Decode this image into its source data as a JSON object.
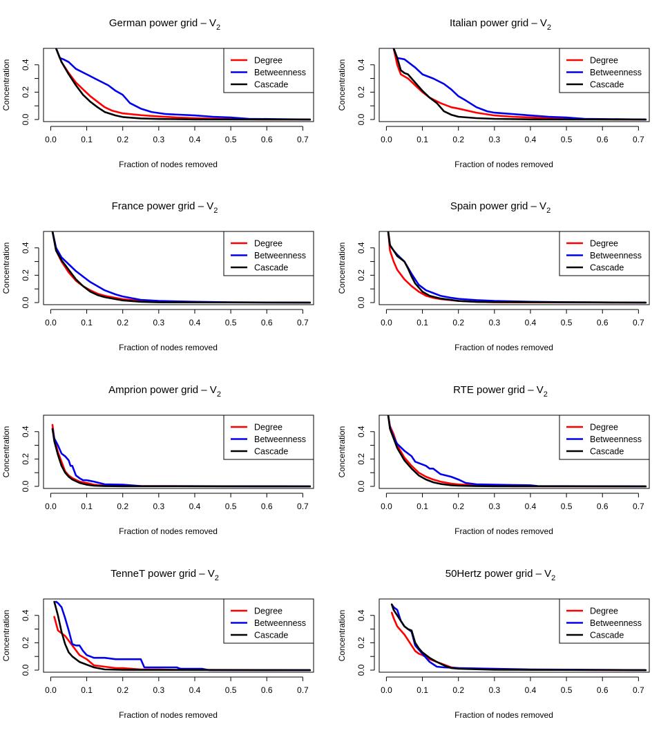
{
  "figure": {
    "xlabel": "Fraction of nodes removed",
    "ylabel": "Concentration",
    "xticks": [
      "0.0",
      "0.1",
      "0.2",
      "0.3",
      "0.4",
      "0.5",
      "0.6",
      "0.7"
    ],
    "yticks": [
      "0.0",
      "0.2",
      "0.4"
    ],
    "legend_labels": [
      "Degree",
      "Betweenness",
      "Cascade"
    ],
    "colors": {
      "Degree": "#ff0000",
      "Betweenness": "#0000ee",
      "Cascade": "#000000"
    }
  },
  "chart_data": [
    {
      "type": "line",
      "title": "German power grid – V",
      "title_subscript": "2",
      "xlabel": "Fraction of nodes removed",
      "ylabel": "Concentration",
      "xlim": [
        -0.02,
        0.73
      ],
      "ylim": [
        0,
        0.52
      ],
      "legend_position": "top-right",
      "series": [
        {
          "name": "Degree",
          "x": [
            0.015,
            0.03,
            0.05,
            0.07,
            0.09,
            0.11,
            0.13,
            0.15,
            0.17,
            0.2,
            0.25,
            0.3,
            0.35,
            0.4,
            0.45,
            0.5,
            0.55,
            0.72
          ],
          "y": [
            0.52,
            0.42,
            0.34,
            0.27,
            0.22,
            0.17,
            0.13,
            0.09,
            0.065,
            0.045,
            0.032,
            0.022,
            0.015,
            0.01,
            0.006,
            0.003,
            0.0015,
            0
          ]
        },
        {
          "name": "Betweenness",
          "x": [
            0.015,
            0.025,
            0.035,
            0.05,
            0.07,
            0.1,
            0.13,
            0.16,
            0.18,
            0.2,
            0.22,
            0.25,
            0.28,
            0.32,
            0.4,
            0.45,
            0.5,
            0.55,
            0.72
          ],
          "y": [
            0.52,
            0.45,
            0.44,
            0.42,
            0.37,
            0.33,
            0.29,
            0.25,
            0.21,
            0.18,
            0.12,
            0.08,
            0.055,
            0.04,
            0.03,
            0.02,
            0.015,
            0.005,
            0
          ]
        },
        {
          "name": "Cascade",
          "x": [
            0.015,
            0.03,
            0.05,
            0.07,
            0.09,
            0.11,
            0.13,
            0.15,
            0.18,
            0.2,
            0.25,
            0.3,
            0.4,
            0.72
          ],
          "y": [
            0.52,
            0.42,
            0.33,
            0.25,
            0.18,
            0.13,
            0.09,
            0.055,
            0.03,
            0.018,
            0.008,
            0.004,
            0.001,
            0
          ]
        }
      ]
    },
    {
      "type": "line",
      "title": "Italian power grid – V",
      "title_subscript": "2",
      "xlabel": "Fraction of nodes removed",
      "ylabel": "Concentration",
      "xlim": [
        -0.02,
        0.73
      ],
      "ylim": [
        0,
        0.52
      ],
      "legend_position": "top-right",
      "series": [
        {
          "name": "Degree",
          "x": [
            0.02,
            0.03,
            0.04,
            0.06,
            0.08,
            0.1,
            0.12,
            0.15,
            0.18,
            0.2,
            0.25,
            0.3,
            0.35,
            0.4,
            0.45,
            0.5,
            0.55,
            0.72
          ],
          "y": [
            0.52,
            0.4,
            0.33,
            0.3,
            0.25,
            0.2,
            0.16,
            0.12,
            0.09,
            0.08,
            0.05,
            0.03,
            0.02,
            0.015,
            0.01,
            0.005,
            0.002,
            0
          ]
        },
        {
          "name": "Betweenness",
          "x": [
            0.02,
            0.03,
            0.05,
            0.08,
            0.1,
            0.13,
            0.16,
            0.18,
            0.2,
            0.22,
            0.25,
            0.28,
            0.3,
            0.35,
            0.4,
            0.45,
            0.5,
            0.55,
            0.72
          ],
          "y": [
            0.52,
            0.45,
            0.44,
            0.38,
            0.33,
            0.3,
            0.26,
            0.22,
            0.17,
            0.14,
            0.09,
            0.06,
            0.05,
            0.04,
            0.03,
            0.02,
            0.015,
            0.005,
            0
          ]
        },
        {
          "name": "Cascade",
          "x": [
            0.02,
            0.03,
            0.04,
            0.05,
            0.06,
            0.08,
            0.1,
            0.12,
            0.14,
            0.16,
            0.18,
            0.2,
            0.25,
            0.3,
            0.4,
            0.72
          ],
          "y": [
            0.52,
            0.45,
            0.36,
            0.34,
            0.33,
            0.27,
            0.21,
            0.16,
            0.12,
            0.06,
            0.035,
            0.02,
            0.01,
            0.005,
            0.001,
            0
          ]
        }
      ]
    },
    {
      "type": "line",
      "title": "France power grid – V",
      "title_subscript": "2",
      "xlabel": "Fraction of nodes removed",
      "ylabel": "Concentration",
      "xlim": [
        -0.02,
        0.73
      ],
      "ylim": [
        0,
        0.52
      ],
      "legend_position": "top-right",
      "series": [
        {
          "name": "Degree",
          "x": [
            0.005,
            0.015,
            0.03,
            0.05,
            0.07,
            0.09,
            0.11,
            0.13,
            0.15,
            0.18,
            0.2,
            0.25,
            0.3,
            0.4,
            0.72
          ],
          "y": [
            0.52,
            0.38,
            0.3,
            0.22,
            0.16,
            0.12,
            0.09,
            0.065,
            0.05,
            0.035,
            0.025,
            0.012,
            0.006,
            0.002,
            0
          ]
        },
        {
          "name": "Betweenness",
          "x": [
            0.005,
            0.015,
            0.03,
            0.05,
            0.07,
            0.09,
            0.11,
            0.13,
            0.15,
            0.18,
            0.2,
            0.25,
            0.3,
            0.4,
            0.5,
            0.72
          ],
          "y": [
            0.52,
            0.4,
            0.33,
            0.28,
            0.23,
            0.19,
            0.15,
            0.12,
            0.09,
            0.06,
            0.045,
            0.02,
            0.012,
            0.006,
            0.002,
            0
          ]
        },
        {
          "name": "Cascade",
          "x": [
            0.005,
            0.015,
            0.03,
            0.05,
            0.07,
            0.09,
            0.11,
            0.13,
            0.15,
            0.18,
            0.2,
            0.25,
            0.3,
            0.72
          ],
          "y": [
            0.52,
            0.38,
            0.31,
            0.24,
            0.17,
            0.12,
            0.08,
            0.055,
            0.04,
            0.025,
            0.016,
            0.006,
            0.002,
            0
          ]
        }
      ]
    },
    {
      "type": "line",
      "title": "Spain power grid – V",
      "title_subscript": "2",
      "xlabel": "Fraction of nodes removed",
      "ylabel": "Concentration",
      "xlim": [
        -0.02,
        0.73
      ],
      "ylim": [
        0,
        0.52
      ],
      "legend_position": "top-right",
      "series": [
        {
          "name": "Degree",
          "x": [
            0.005,
            0.01,
            0.02,
            0.03,
            0.05,
            0.07,
            0.09,
            0.11,
            0.13,
            0.15,
            0.2,
            0.25,
            0.3,
            0.72
          ],
          "y": [
            0.52,
            0.38,
            0.3,
            0.24,
            0.17,
            0.12,
            0.08,
            0.05,
            0.035,
            0.025,
            0.012,
            0.006,
            0.002,
            0
          ]
        },
        {
          "name": "Betweenness",
          "x": [
            0.005,
            0.01,
            0.02,
            0.03,
            0.05,
            0.07,
            0.09,
            0.11,
            0.13,
            0.15,
            0.18,
            0.2,
            0.25,
            0.3,
            0.4,
            0.5,
            0.72
          ],
          "y": [
            0.52,
            0.42,
            0.38,
            0.35,
            0.3,
            0.21,
            0.13,
            0.09,
            0.07,
            0.05,
            0.035,
            0.028,
            0.018,
            0.012,
            0.006,
            0.003,
            0
          ]
        },
        {
          "name": "Cascade",
          "x": [
            0.005,
            0.01,
            0.02,
            0.03,
            0.04,
            0.05,
            0.06,
            0.07,
            0.08,
            0.1,
            0.12,
            0.15,
            0.2,
            0.25,
            0.72
          ],
          "y": [
            0.52,
            0.42,
            0.38,
            0.34,
            0.32,
            0.3,
            0.25,
            0.19,
            0.14,
            0.08,
            0.05,
            0.03,
            0.012,
            0.005,
            0
          ]
        }
      ]
    },
    {
      "type": "line",
      "title": "Amprion power grid – V",
      "title_subscript": "2",
      "xlabel": "Fraction of nodes removed",
      "ylabel": "Concentration",
      "xlim": [
        -0.02,
        0.73
      ],
      "ylim": [
        0,
        0.52
      ],
      "legend_position": "top-right",
      "series": [
        {
          "name": "Degree",
          "x": [
            0.005,
            0.01,
            0.02,
            0.03,
            0.04,
            0.05,
            0.06,
            0.08,
            0.1,
            0.12,
            0.15,
            0.2,
            0.72
          ],
          "y": [
            0.45,
            0.35,
            0.25,
            0.18,
            0.11,
            0.08,
            0.06,
            0.035,
            0.025,
            0.012,
            0.005,
            0.002,
            0
          ]
        },
        {
          "name": "Betweenness",
          "x": [
            0.005,
            0.01,
            0.02,
            0.03,
            0.04,
            0.05,
            0.055,
            0.06,
            0.07,
            0.08,
            0.09,
            0.1,
            0.12,
            0.15,
            0.2,
            0.25,
            0.72
          ],
          "y": [
            0.42,
            0.35,
            0.3,
            0.24,
            0.22,
            0.19,
            0.15,
            0.15,
            0.08,
            0.06,
            0.045,
            0.045,
            0.035,
            0.015,
            0.012,
            0.002,
            0
          ]
        },
        {
          "name": "Cascade",
          "x": [
            0.005,
            0.01,
            0.02,
            0.03,
            0.04,
            0.05,
            0.06,
            0.08,
            0.1,
            0.12,
            0.15,
            0.2,
            0.72
          ],
          "y": [
            0.42,
            0.33,
            0.23,
            0.15,
            0.1,
            0.07,
            0.05,
            0.025,
            0.012,
            0.005,
            0.002,
            0.001,
            0
          ]
        }
      ]
    },
    {
      "type": "line",
      "title": "RTE power grid – V",
      "title_subscript": "2",
      "xlabel": "Fraction of nodes removed",
      "ylabel": "Concentration",
      "xlim": [
        -0.02,
        0.73
      ],
      "ylim": [
        0,
        0.52
      ],
      "legend_position": "top-right",
      "series": [
        {
          "name": "Degree",
          "x": [
            0.005,
            0.01,
            0.02,
            0.03,
            0.05,
            0.07,
            0.09,
            0.11,
            0.13,
            0.15,
            0.18,
            0.2,
            0.25,
            0.3,
            0.35,
            0.72
          ],
          "y": [
            0.52,
            0.44,
            0.38,
            0.3,
            0.21,
            0.15,
            0.1,
            0.07,
            0.05,
            0.035,
            0.02,
            0.014,
            0.008,
            0.004,
            0.001,
            0
          ]
        },
        {
          "name": "Betweenness",
          "x": [
            0.005,
            0.01,
            0.02,
            0.03,
            0.05,
            0.07,
            0.08,
            0.09,
            0.1,
            0.11,
            0.12,
            0.13,
            0.15,
            0.18,
            0.2,
            0.22,
            0.25,
            0.3,
            0.35,
            0.4,
            0.42,
            0.72
          ],
          "y": [
            0.52,
            0.43,
            0.36,
            0.31,
            0.26,
            0.22,
            0.18,
            0.17,
            0.16,
            0.15,
            0.13,
            0.13,
            0.09,
            0.07,
            0.05,
            0.025,
            0.015,
            0.012,
            0.01,
            0.008,
            0.002,
            0
          ]
        },
        {
          "name": "Cascade",
          "x": [
            0.005,
            0.01,
            0.02,
            0.03,
            0.05,
            0.07,
            0.09,
            0.11,
            0.13,
            0.15,
            0.18,
            0.2,
            0.25,
            0.3,
            0.72
          ],
          "y": [
            0.52,
            0.42,
            0.35,
            0.28,
            0.19,
            0.13,
            0.08,
            0.05,
            0.03,
            0.018,
            0.008,
            0.005,
            0.002,
            0.001,
            0
          ]
        }
      ]
    },
    {
      "type": "line",
      "title": "TenneT power grid – V",
      "title_subscript": "2",
      "xlabel": "Fraction of nodes removed",
      "ylabel": "Concentration",
      "xlim": [
        -0.02,
        0.73
      ],
      "ylim": [
        0,
        0.52
      ],
      "legend_position": "top-right",
      "series": [
        {
          "name": "Degree",
          "x": [
            0.01,
            0.02,
            0.04,
            0.06,
            0.08,
            0.1,
            0.12,
            0.15,
            0.18,
            0.2,
            0.25,
            0.3,
            0.35,
            0.72
          ],
          "y": [
            0.39,
            0.29,
            0.25,
            0.18,
            0.11,
            0.08,
            0.035,
            0.025,
            0.015,
            0.015,
            0.005,
            0.005,
            0.002,
            0
          ]
        },
        {
          "name": "Betweenness",
          "x": [
            0.015,
            0.02,
            0.03,
            0.04,
            0.05,
            0.06,
            0.07,
            0.08,
            0.09,
            0.1,
            0.12,
            0.15,
            0.18,
            0.2,
            0.25,
            0.26,
            0.3,
            0.35,
            0.36,
            0.42,
            0.44,
            0.72
          ],
          "y": [
            0.5,
            0.49,
            0.46,
            0.38,
            0.29,
            0.19,
            0.18,
            0.18,
            0.14,
            0.11,
            0.09,
            0.09,
            0.08,
            0.08,
            0.08,
            0.02,
            0.02,
            0.02,
            0.01,
            0.01,
            0,
            0
          ]
        },
        {
          "name": "Cascade",
          "x": [
            0.01,
            0.02,
            0.03,
            0.04,
            0.05,
            0.06,
            0.08,
            0.1,
            0.12,
            0.15,
            0.2,
            0.72
          ],
          "y": [
            0.5,
            0.4,
            0.28,
            0.19,
            0.13,
            0.1,
            0.06,
            0.04,
            0.02,
            0.005,
            0.002,
            0
          ]
        }
      ]
    },
    {
      "type": "line",
      "title": "50Hertz power grid – V",
      "title_subscript": "2",
      "xlabel": "Fraction of nodes removed",
      "ylabel": "Concentration",
      "xlim": [
        -0.02,
        0.73
      ],
      "ylim": [
        0,
        0.52
      ],
      "legend_position": "top-right",
      "series": [
        {
          "name": "Degree",
          "x": [
            0.015,
            0.02,
            0.03,
            0.04,
            0.05,
            0.06,
            0.07,
            0.08,
            0.09,
            0.1,
            0.12,
            0.15,
            0.18,
            0.2,
            0.3,
            0.4,
            0.72
          ],
          "y": [
            0.42,
            0.38,
            0.32,
            0.29,
            0.26,
            0.22,
            0.18,
            0.14,
            0.12,
            0.11,
            0.08,
            0.05,
            0.02,
            0.015,
            0.008,
            0.002,
            0
          ]
        },
        {
          "name": "Betweenness",
          "x": [
            0.015,
            0.02,
            0.03,
            0.04,
            0.05,
            0.06,
            0.07,
            0.08,
            0.09,
            0.1,
            0.12,
            0.14,
            0.16,
            0.2,
            0.3,
            0.4,
            0.72
          ],
          "y": [
            0.48,
            0.46,
            0.44,
            0.36,
            0.32,
            0.3,
            0.28,
            0.18,
            0.15,
            0.12,
            0.06,
            0.025,
            0.02,
            0.015,
            0.01,
            0.005,
            0
          ]
        },
        {
          "name": "Cascade",
          "x": [
            0.015,
            0.02,
            0.03,
            0.04,
            0.05,
            0.06,
            0.07,
            0.08,
            0.09,
            0.1,
            0.12,
            0.14,
            0.16,
            0.18,
            0.2,
            0.3,
            0.72
          ],
          "y": [
            0.48,
            0.44,
            0.4,
            0.36,
            0.32,
            0.3,
            0.29,
            0.2,
            0.16,
            0.13,
            0.09,
            0.06,
            0.035,
            0.015,
            0.01,
            0.003,
            0
          ]
        }
      ]
    }
  ]
}
